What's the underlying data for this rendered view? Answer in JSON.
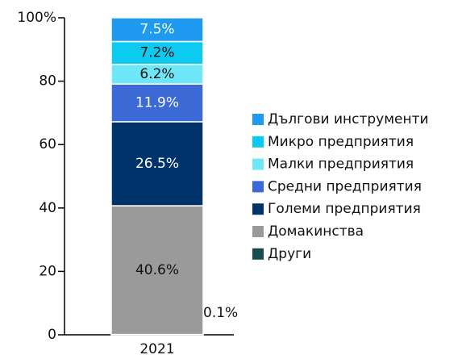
{
  "chart_data": {
    "type": "stacked_bar",
    "categories": [
      "2021"
    ],
    "series": [
      {
        "name": "Други",
        "color": "#1b4b4b",
        "values": [
          0.1
        ],
        "value_labels": [
          "0.1%"
        ]
      },
      {
        "name": "Домакинства",
        "color": "#9a9a9a",
        "values": [
          40.6
        ],
        "value_labels": [
          "40.6%"
        ]
      },
      {
        "name": "Големи предприятия",
        "color": "#00336a",
        "values": [
          26.5
        ],
        "value_labels": [
          "26.5%"
        ]
      },
      {
        "name": "Средни предприятия",
        "color": "#3b6ad6",
        "values": [
          11.9
        ],
        "value_labels": [
          "11.9%"
        ]
      },
      {
        "name": "Малки предприятия",
        "color": "#6ee8f8",
        "values": [
          6.2
        ],
        "value_labels": [
          "6.2%"
        ]
      },
      {
        "name": "Микро предприятия",
        "color": "#0ccaf0",
        "values": [
          7.2
        ],
        "value_labels": [
          "7.2%"
        ]
      },
      {
        "name": "Дългови инструменти",
        "color": "#1e9bf0",
        "values": [
          7.5
        ],
        "value_labels": [
          "7.5%"
        ]
      }
    ],
    "ylim": [
      0,
      100
    ],
    "yticks": [
      0,
      20,
      40,
      60,
      80,
      {
        "value": 100,
        "label": "100%"
      }
    ],
    "legend": "right"
  }
}
